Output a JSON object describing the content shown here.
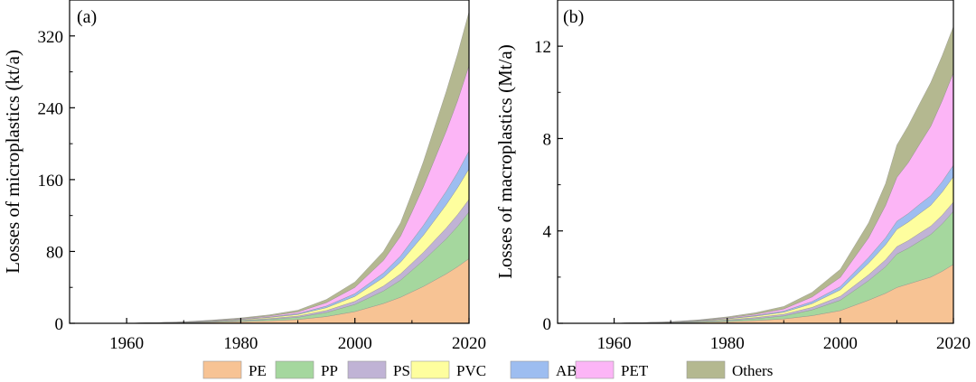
{
  "legend": {
    "items": [
      {
        "name": "PE",
        "color": "#F7C394"
      },
      {
        "name": "PP",
        "color": "#A5D79E"
      },
      {
        "name": "PS",
        "color": "#C0B3D5"
      },
      {
        "name": "PVC",
        "color": "#FEFE9E"
      },
      {
        "name": "ABS",
        "color": "#9DBDF0"
      },
      {
        "name": "PET",
        "color": "#FCB5F6"
      },
      {
        "name": "Others",
        "color": "#B4B890"
      }
    ]
  },
  "chart_data": [
    {
      "type": "area",
      "stacked": true,
      "panel_label": "(a)",
      "title": "",
      "xlabel": "",
      "ylabel": "Losses of microplastics (kt/a)",
      "xlim": [
        1950,
        2020
      ],
      "ylim": [
        0,
        360
      ],
      "xticks": [
        "1960",
        "1980",
        "2000",
        "2020"
      ],
      "yticks": [
        "0",
        "80",
        "160",
        "240",
        "320"
      ],
      "x": [
        1950,
        1955,
        1960,
        1965,
        1970,
        1975,
        1980,
        1985,
        1990,
        1995,
        2000,
        2005,
        2008,
        2010,
        2012,
        2014,
        2016,
        2018,
        2020
      ],
      "series": [
        {
          "name": "PE",
          "values": [
            0,
            0,
            0.1,
            0.3,
            0.6,
            1.1,
            1.8,
            2.8,
            4.2,
            7.5,
            13,
            22,
            29,
            35,
            41,
            48,
            55,
            63,
            72
          ]
        },
        {
          "name": "PP",
          "values": [
            0,
            0,
            0,
            0.1,
            0.3,
            0.6,
            1.0,
            1.6,
            2.5,
            4.5,
            8,
            14,
            19,
            24,
            29,
            34,
            39,
            45,
            52
          ]
        },
        {
          "name": "PS",
          "values": [
            0,
            0,
            0,
            0.1,
            0.2,
            0.4,
            0.6,
            0.9,
            1.3,
            2.2,
            3.5,
            5.5,
            7,
            8,
            9,
            10.5,
            12,
            13,
            14
          ]
        },
        {
          "name": "PVC",
          "values": [
            0,
            0,
            0,
            0.1,
            0.2,
            0.5,
            0.8,
            1.2,
            1.8,
            3.2,
            5.5,
            9.5,
            13,
            16,
            19,
            22.5,
            26,
            30,
            34
          ]
        },
        {
          "name": "ABS",
          "values": [
            0,
            0,
            0,
            0,
            0.1,
            0.2,
            0.4,
            0.6,
            1.0,
            1.8,
            3,
            5,
            7,
            9,
            11,
            13,
            15,
            17,
            20
          ]
        },
        {
          "name": "PET",
          "values": [
            0,
            0,
            0,
            0,
            0.1,
            0.3,
            0.6,
            1.0,
            1.8,
            3.8,
            7,
            14,
            22,
            32,
            43,
            55,
            67,
            80,
            95
          ]
        },
        {
          "name": "Others",
          "values": [
            0,
            0,
            0,
            0.1,
            0.2,
            0.5,
            0.8,
            1.3,
            2.0,
            3.5,
            6,
            10,
            15,
            21,
            28,
            36,
            44,
            52,
            60
          ]
        }
      ]
    },
    {
      "type": "area",
      "stacked": true,
      "panel_label": "(b)",
      "title": "",
      "xlabel": "",
      "ylabel": "Losses of macroplastics (Mt/a)",
      "xlim": [
        1950,
        2020
      ],
      "ylim": [
        0,
        14
      ],
      "xticks": [
        "1960",
        "1980",
        "2000",
        "2020"
      ],
      "yticks": [
        "0",
        "4",
        "8",
        "12"
      ],
      "x": [
        1950,
        1955,
        1960,
        1965,
        1970,
        1975,
        1980,
        1985,
        1990,
        1995,
        2000,
        2005,
        2008,
        2010,
        2012,
        2014,
        2016,
        2018,
        2020
      ],
      "series": [
        {
          "name": "PE",
          "values": [
            0,
            0,
            0.005,
            0.01,
            0.02,
            0.04,
            0.07,
            0.12,
            0.19,
            0.33,
            0.55,
            1.0,
            1.3,
            1.55,
            1.7,
            1.85,
            2.0,
            2.25,
            2.55
          ]
        },
        {
          "name": "PP",
          "values": [
            0,
            0,
            0,
            0.005,
            0.01,
            0.03,
            0.05,
            0.08,
            0.13,
            0.25,
            0.45,
            0.85,
            1.15,
            1.45,
            1.55,
            1.7,
            1.85,
            2.05,
            2.3
          ]
        },
        {
          "name": "PS",
          "values": [
            0,
            0,
            0,
            0.005,
            0.01,
            0.02,
            0.03,
            0.05,
            0.07,
            0.11,
            0.17,
            0.25,
            0.3,
            0.32,
            0.33,
            0.35,
            0.36,
            0.38,
            0.4
          ]
        },
        {
          "name": "PVC",
          "values": [
            0,
            0,
            0,
            0.005,
            0.01,
            0.02,
            0.04,
            0.06,
            0.09,
            0.16,
            0.28,
            0.5,
            0.65,
            0.75,
            0.8,
            0.85,
            0.9,
            1.0,
            1.1
          ]
        },
        {
          "name": "ABS",
          "values": [
            0,
            0,
            0,
            0,
            0.005,
            0.01,
            0.02,
            0.03,
            0.05,
            0.09,
            0.14,
            0.25,
            0.3,
            0.35,
            0.37,
            0.4,
            0.42,
            0.45,
            0.5
          ]
        },
        {
          "name": "PET",
          "values": [
            0,
            0,
            0,
            0,
            0.005,
            0.01,
            0.03,
            0.05,
            0.09,
            0.2,
            0.4,
            0.85,
            1.4,
            1.9,
            2.2,
            2.6,
            3.0,
            3.5,
            4.0
          ]
        },
        {
          "name": "Others",
          "values": [
            0,
            0,
            0,
            0.005,
            0.01,
            0.02,
            0.04,
            0.07,
            0.11,
            0.2,
            0.35,
            0.65,
            0.95,
            1.4,
            1.6,
            1.75,
            1.9,
            1.95,
            2.0
          ]
        }
      ]
    }
  ]
}
